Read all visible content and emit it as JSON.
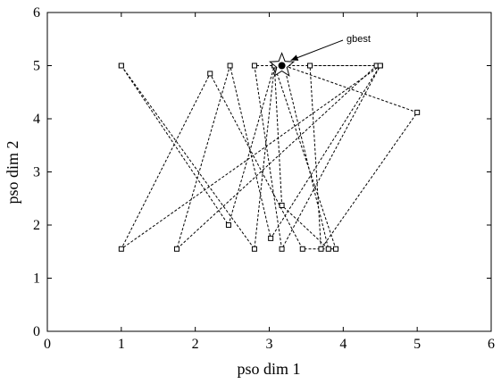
{
  "chart_data": {
    "type": "scatter",
    "xlabel": "pso dim 1",
    "ylabel": "pso dim 2",
    "xlim": [
      0,
      6
    ],
    "ylim": [
      0,
      6
    ],
    "xticks": [
      "0",
      "1",
      "2",
      "3",
      "4",
      "5",
      "6"
    ],
    "yticks": [
      "0",
      "1",
      "2",
      "3",
      "4",
      "5",
      "6"
    ],
    "grid": false,
    "line_style": "dashed",
    "marker": "square",
    "gbest": {
      "label": "gbest",
      "x": 3.17,
      "y": 5.0
    },
    "paths": [
      [
        [
          1.0,
          5.0
        ],
        [
          2.45,
          2.0
        ],
        [
          3.07,
          5.0
        ],
        [
          3.9,
          1.55
        ],
        [
          3.45,
          1.55
        ],
        [
          2.2,
          4.85
        ],
        [
          1.0,
          1.55
        ],
        [
          4.5,
          5.0
        ],
        [
          3.17,
          1.55
        ],
        [
          2.8,
          5.0
        ],
        [
          3.17,
          5.0
        ]
      ],
      [
        [
          1.0,
          5.0
        ],
        [
          2.8,
          1.55
        ],
        [
          3.07,
          5.0
        ],
        [
          3.17,
          2.37
        ],
        [
          3.8,
          1.55
        ],
        [
          3.2,
          5.0
        ],
        [
          5.0,
          4.12
        ],
        [
          3.7,
          1.55
        ],
        [
          3.55,
          5.0
        ],
        [
          4.45,
          5.0
        ],
        [
          1.75,
          1.55
        ],
        [
          2.47,
          5.0
        ],
        [
          3.02,
          1.75
        ],
        [
          4.5,
          5.0
        ]
      ],
      [
        [
          3.07,
          5.0
        ],
        [
          3.55,
          5.0
        ],
        [
          4.5,
          5.0
        ]
      ]
    ]
  }
}
